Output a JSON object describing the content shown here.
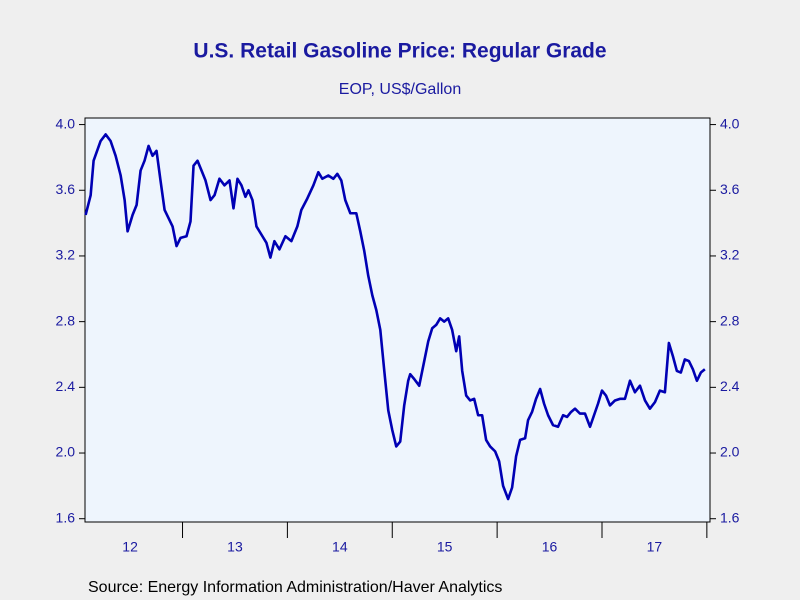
{
  "chart_data": {
    "type": "line",
    "title": "U.S. Retail Gasoline Price: Regular Grade",
    "subtitle": "EOP, US$/Gallon",
    "source": "Source:  Energy Information Administration/Haver Analytics",
    "xlim": [
      2012.07,
      2018.03
    ],
    "xticks": [
      2013,
      2014,
      2015,
      2016,
      2017,
      2018
    ],
    "year_labels": [
      {
        "value": 2012.5,
        "label": "12"
      },
      {
        "value": 2013.5,
        "label": "13"
      },
      {
        "value": 2014.5,
        "label": "14"
      },
      {
        "value": 2015.5,
        "label": "15"
      },
      {
        "value": 2016.5,
        "label": "16"
      },
      {
        "value": 2017.5,
        "label": "17"
      }
    ],
    "ylim": [
      1.58,
      4.04
    ],
    "yticks": [
      1.6,
      {
        "value": 2,
        "label": "2.0"
      },
      2.4,
      2.8,
      3.2,
      3.6,
      {
        "value": 4,
        "label": "4.0"
      }
    ],
    "x": [
      2012.076,
      2012.124,
      2012.152,
      2012.219,
      2012.267,
      2012.314,
      2012.362,
      2012.41,
      2012.448,
      2012.476,
      2012.524,
      2012.562,
      2012.6,
      2012.638,
      2012.676,
      2012.714,
      2012.752,
      2012.79,
      2012.829,
      2012.867,
      2012.905,
      2012.943,
      2012.981,
      2013.038,
      2013.076,
      2013.105,
      2013.143,
      2013.181,
      2013.219,
      2013.267,
      2013.305,
      2013.352,
      2013.4,
      2013.448,
      2013.486,
      2013.524,
      2013.562,
      2013.6,
      2013.629,
      2013.667,
      2013.705,
      2013.762,
      2013.8,
      2013.838,
      2013.876,
      2013.924,
      2013.981,
      2014.038,
      2014.095,
      2014.133,
      2014.19,
      2014.248,
      2014.295,
      2014.333,
      2014.39,
      2014.438,
      2014.476,
      2014.514,
      2014.552,
      2014.6,
      2014.657,
      2014.695,
      2014.733,
      2014.771,
      2014.81,
      2014.848,
      2014.886,
      2014.924,
      2014.962,
      2015.0,
      2015.038,
      2015.076,
      2015.114,
      2015.152,
      2015.171,
      2015.21,
      2015.257,
      2015.305,
      2015.343,
      2015.381,
      2015.419,
      2015.457,
      2015.495,
      2015.533,
      2015.571,
      2015.61,
      2015.638,
      2015.667,
      2015.705,
      2015.743,
      2015.781,
      2015.819,
      2015.857,
      2015.895,
      2015.933,
      2015.981,
      2016.019,
      2016.057,
      2016.105,
      2016.143,
      2016.181,
      2016.219,
      2016.267,
      2016.295,
      2016.333,
      2016.371,
      2016.41,
      2016.448,
      2016.486,
      2016.533,
      2016.581,
      2016.629,
      2016.667,
      2016.705,
      2016.743,
      2016.79,
      2016.838,
      2016.886,
      2016.924,
      2016.962,
      2017.0,
      2017.038,
      2017.076,
      2017.124,
      2017.171,
      2017.219,
      2017.267,
      2017.314,
      2017.362,
      2017.41,
      2017.457,
      2017.505,
      2017.552,
      2017.6,
      2017.638,
      2017.676,
      2017.714,
      2017.752,
      2017.79,
      2017.829,
      2017.867,
      2017.905,
      2017.943,
      2017.981
    ],
    "series": [
      {
        "name": "Regular Grade",
        "color": "#0000b4",
        "values": [
          3.45,
          3.57,
          3.78,
          3.9,
          3.94,
          3.9,
          3.81,
          3.69,
          3.54,
          3.35,
          3.45,
          3.51,
          3.72,
          3.78,
          3.87,
          3.81,
          3.84,
          3.66,
          3.48,
          3.43,
          3.38,
          3.26,
          3.31,
          3.32,
          3.41,
          3.75,
          3.78,
          3.72,
          3.66,
          3.54,
          3.57,
          3.67,
          3.63,
          3.66,
          3.49,
          3.67,
          3.63,
          3.56,
          3.6,
          3.54,
          3.38,
          3.32,
          3.28,
          3.19,
          3.29,
          3.24,
          3.32,
          3.29,
          3.38,
          3.48,
          3.55,
          3.63,
          3.71,
          3.67,
          3.69,
          3.67,
          3.7,
          3.66,
          3.54,
          3.46,
          3.46,
          3.35,
          3.23,
          3.08,
          2.96,
          2.87,
          2.75,
          2.5,
          2.26,
          2.14,
          2.04,
          2.07,
          2.29,
          2.44,
          2.48,
          2.45,
          2.41,
          2.56,
          2.68,
          2.76,
          2.78,
          2.82,
          2.8,
          2.82,
          2.75,
          2.62,
          2.71,
          2.5,
          2.35,
          2.32,
          2.33,
          2.23,
          2.23,
          2.08,
          2.04,
          2.01,
          1.95,
          1.8,
          1.72,
          1.79,
          1.98,
          2.08,
          2.09,
          2.2,
          2.25,
          2.33,
          2.39,
          2.3,
          2.23,
          2.17,
          2.16,
          2.23,
          2.22,
          2.25,
          2.27,
          2.24,
          2.24,
          2.16,
          2.23,
          2.3,
          2.38,
          2.35,
          2.29,
          2.32,
          2.33,
          2.33,
          2.44,
          2.37,
          2.41,
          2.32,
          2.27,
          2.31,
          2.38,
          2.37,
          2.67,
          2.59,
          2.5,
          2.49,
          2.57,
          2.56,
          2.51,
          2.44,
          2.49,
          2.51
        ]
      }
    ]
  }
}
